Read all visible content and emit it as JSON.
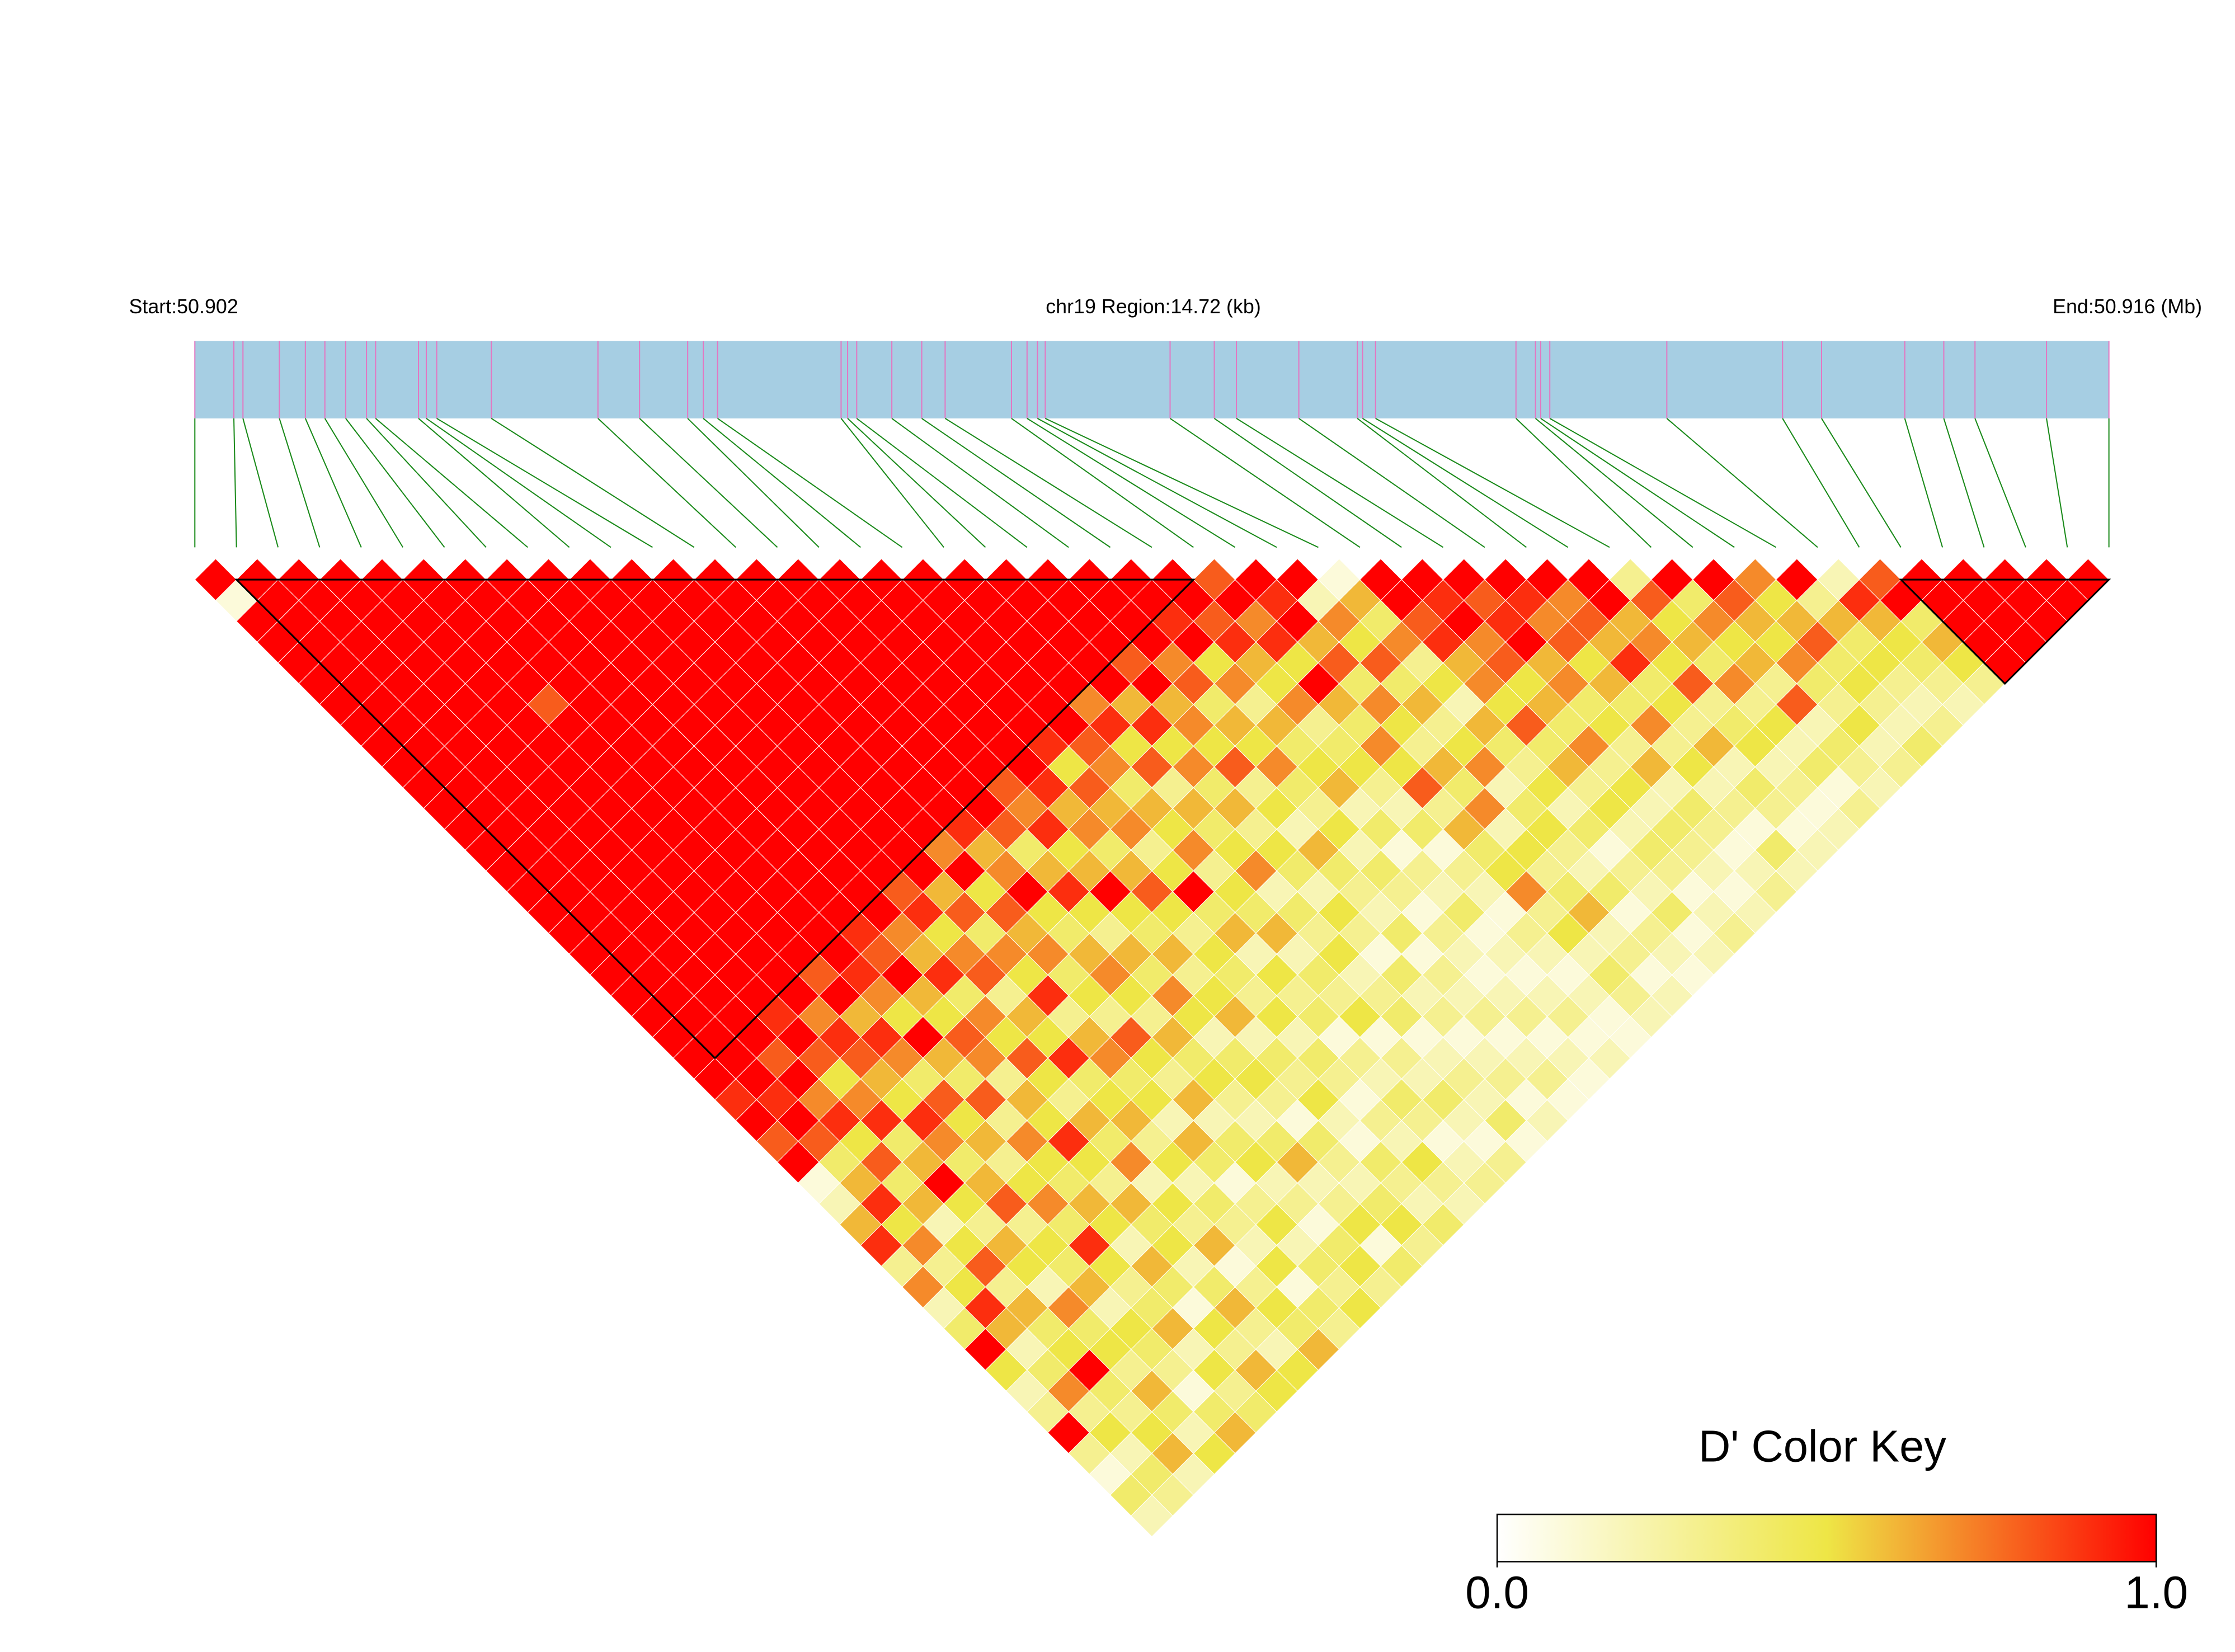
{
  "chart_data": {
    "type": "ld-heatmap",
    "start_label": "Start:50.902",
    "region_label": "chr19 Region:14.72 (kb)",
    "end_label": "End:50.916 (Mb)",
    "xlim": [
      0,
      14.72
    ],
    "positions": [
      0,
      0.3,
      0.37,
      0.65,
      0.85,
      1.0,
      1.16,
      1.32,
      1.39,
      1.72,
      1.78,
      1.86,
      2.28,
      3.1,
      3.42,
      3.79,
      3.91,
      4.02,
      4.97,
      5.02,
      5.09,
      5.36,
      5.59,
      5.77,
      6.28,
      6.4,
      6.48,
      6.54,
      7.5,
      7.84,
      8.01,
      8.49,
      8.94,
      8.98,
      9.08,
      10.16,
      10.31,
      10.35,
      10.42,
      11.32,
      12.21,
      12.51,
      13.15,
      13.45,
      13.69,
      14.24,
      14.72
    ],
    "matrix": [
      [
        1,
        0.1,
        1,
        1,
        1,
        1,
        1,
        1,
        1,
        1,
        1,
        1,
        1,
        1,
        1,
        1,
        1,
        1,
        1,
        1,
        1,
        1,
        1,
        1,
        1,
        0.9,
        1,
        0.8,
        1,
        0.1,
        0.2,
        0.6,
        0.9,
        0.3,
        0.7,
        0.2,
        0.4,
        1,
        0.5,
        0.2,
        0.3,
        1,
        0.3,
        0.1,
        0.4,
        0.2
      ],
      [
        1,
        1,
        1,
        1,
        1,
        1,
        1,
        1,
        1,
        1,
        1,
        1,
        1,
        1,
        1,
        1,
        1,
        1,
        1,
        1,
        1,
        1,
        1,
        1,
        1,
        0.9,
        1,
        0.8,
        0.4,
        0.6,
        0.9,
        0.5,
        0.7,
        0.3,
        0.5,
        0.9,
        0.6,
        0.2,
        0.4,
        0.7,
        0.3,
        0.5,
        0.2,
        0.4,
        0.3
      ],
      [
        1,
        1,
        1,
        1,
        1,
        1,
        1,
        1,
        1,
        1,
        1,
        1,
        1,
        1,
        1,
        1,
        1,
        1,
        1,
        1,
        1,
        1,
        1,
        0.8,
        1,
        0.7,
        0.9,
        0.5,
        0.8,
        0.4,
        0.6,
        0.2,
        0.5,
        0.8,
        0.3,
        0.6,
        0.4,
        0.5,
        1,
        0.4,
        0.3,
        0.5,
        0.6,
        0.2
      ],
      [
        1,
        1,
        1,
        1,
        1,
        1,
        1,
        1,
        1,
        1,
        1,
        1,
        1,
        1,
        1,
        1,
        1,
        1,
        1,
        1,
        1,
        0.9,
        1,
        0.8,
        0.5,
        0.7,
        0.9,
        0.4,
        0.6,
        1,
        0.5,
        0.3,
        0.6,
        0.5,
        0.2,
        0.7,
        0.4,
        0.5,
        0.3,
        0.6,
        0.4,
        0.2,
        0.5
      ],
      [
        1,
        1,
        1,
        1,
        1,
        1,
        1,
        1,
        1,
        1,
        1,
        1,
        1,
        1,
        1,
        1,
        1,
        1,
        1,
        1,
        1,
        0.7,
        0.9,
        0.8,
        0.6,
        0.5,
        0.9,
        0.7,
        0.4,
        0.6,
        0.8,
        0.3,
        0.5,
        0.4,
        0.6,
        0.2,
        0.5,
        0.4,
        0.3,
        0.1,
        0.4,
        0.6
      ],
      [
        1,
        1,
        1,
        1,
        1,
        1,
        0.8,
        1,
        1,
        1,
        1,
        1,
        1,
        1,
        1,
        1,
        1,
        1,
        1,
        0.8,
        1,
        0.6,
        0.9,
        0.7,
        0.4,
        0.8,
        0.5,
        0.6,
        0.3,
        0.5,
        0.7,
        0.4,
        0.9,
        0.5,
        0.3,
        0.4,
        0.6,
        0.2,
        0.5,
        0.3,
        0.4
      ],
      [
        1,
        1,
        1,
        1,
        1,
        1,
        1,
        1,
        1,
        1,
        1,
        1,
        1,
        1,
        1,
        1,
        1,
        1,
        1,
        0.9,
        0.7,
        0.5,
        1,
        0.6,
        0.4,
        0.8,
        0.3,
        0.7,
        0.5,
        0.4,
        0.6,
        0.5,
        0.2,
        0.6,
        0.4,
        0.1,
        0.5,
        0.3,
        0.6,
        0.5
      ],
      [
        1,
        1,
        1,
        1,
        1,
        1,
        1,
        1,
        1,
        1,
        1,
        1,
        1,
        1,
        1,
        1,
        1,
        0.9,
        0.8,
        1,
        0.6,
        0.5,
        0.8,
        0.7,
        0.3,
        0.6,
        0.5,
        0.9,
        0.5,
        0.3,
        0.6,
        0.4,
        0.5,
        0.2,
        0.4,
        0.6,
        0.3,
        0.2,
        0.5
      ],
      [
        1,
        1,
        1,
        1,
        1,
        1,
        1,
        1,
        1,
        1,
        1,
        1,
        1,
        1,
        1,
        1,
        1,
        0.7,
        0.6,
        0.9,
        0.4,
        0.7,
        0.5,
        0.8,
        0.5,
        0.3,
        0.6,
        0.4,
        0.7,
        0.2,
        0.5,
        0.3,
        0.6,
        0.1,
        0.3,
        0.5,
        0.4,
        0.6
      ],
      [
        1,
        1,
        1,
        1,
        1,
        1,
        1,
        1,
        1,
        1,
        1,
        1,
        1,
        1,
        1,
        0.8,
        0.9,
        0.5,
        0.7,
        0.8,
        0.3,
        0.6,
        0.5,
        0.9,
        0.4,
        0.5,
        0.6,
        0.3,
        0.5,
        0.2,
        0.4,
        0.3,
        0.2,
        0.5,
        0.1,
        0.4,
        0.3
      ],
      [
        1,
        1,
        1,
        1,
        1,
        1,
        1,
        1,
        1,
        1,
        1,
        1,
        1,
        1,
        1,
        0.6,
        0.8,
        0.4,
        0.7,
        0.5,
        0.9,
        0.3,
        0.6,
        0.7,
        0.4,
        0.5,
        0.2,
        0.6,
        0.4,
        0.1,
        0.3,
        0.5,
        0.2,
        0.4,
        0.3,
        0.5
      ],
      [
        1,
        1,
        1,
        1,
        1,
        1,
        1,
        1,
        1,
        1,
        1,
        1,
        1,
        0.7,
        1,
        0.5,
        0.8,
        0.6,
        0.7,
        0.4,
        0.5,
        0.3,
        0.8,
        0.5,
        0.3,
        0.6,
        0.2,
        0.4,
        0.5,
        0.2,
        0.3,
        0.1,
        0.4,
        0.5,
        0.3
      ],
      [
        1,
        1,
        1,
        1,
        1,
        1,
        1,
        1,
        1,
        1,
        1,
        1,
        0.9,
        0.6,
        0.7,
        1,
        0.5,
        0.4,
        0.6,
        0.7,
        0.5,
        0.3,
        0.6,
        0.4,
        0.5,
        0.3,
        0.2,
        0.4,
        0.6,
        0.2,
        0.3,
        0.5,
        0.1,
        0.4
      ],
      [
        1,
        1,
        1,
        1,
        1,
        1,
        1,
        1,
        1,
        1,
        1,
        1,
        0.8,
        0.4,
        0.6,
        0.9,
        0.5,
        0.3,
        0.6,
        0.4,
        0.7,
        0.5,
        0.2,
        0.4,
        0.5,
        0.3,
        0.1,
        0.4,
        0.3,
        0.2,
        0.4,
        0.5,
        0.3
      ],
      [
        1,
        1,
        1,
        1,
        1,
        1,
        1,
        1,
        1,
        1,
        0.8,
        0.7,
        0.9,
        0.5,
        0.6,
        1,
        0.5,
        0.4,
        0.6,
        0.3,
        0.5,
        0.6,
        0.2,
        0.4,
        0.3,
        0.5,
        0.2,
        0.1,
        0.4,
        0.3,
        0.2,
        0.4
      ],
      [
        1,
        1,
        1,
        1,
        1,
        1,
        1,
        1,
        1,
        1,
        0.9,
        0.6,
        0.7,
        0.4,
        0.6,
        0.8,
        0.5,
        0.3,
        0.5,
        0.4,
        0.3,
        0.5,
        0.2,
        0.4,
        0.3,
        0.1,
        0.3,
        0.2,
        0.5,
        0.3,
        0.2
      ],
      [
        1,
        1,
        1,
        1,
        1,
        1,
        1,
        1,
        0.9,
        0.5,
        0.8,
        0.6,
        0.7,
        0.3,
        0.5,
        1,
        0.4,
        0.6,
        0.2,
        0.5,
        0.3,
        0.4,
        0.1,
        0.3,
        0.2,
        0.4,
        0.3,
        0.1,
        0.2,
        0.3
      ],
      [
        1,
        1,
        1,
        1,
        1,
        1,
        1,
        1,
        0.8,
        0.7,
        0.4,
        0.6,
        0.5,
        0.7,
        0.3,
        0.5,
        0.4,
        0.6,
        0.2,
        0.4,
        0.3,
        0.5,
        0.1,
        0.3,
        0.2,
        0.4,
        0.2,
        0.1,
        0.3
      ],
      [
        1,
        1,
        1,
        1,
        1,
        1,
        0.7,
        0.9,
        0.5,
        0.8,
        0.3,
        0.6,
        0.4,
        0.5,
        0.7,
        0.2,
        0.4,
        0.3,
        0.5,
        0.2,
        0.3,
        0.4,
        0.1,
        0.2,
        0.3,
        0.2,
        0.4,
        0.1
      ],
      [
        1,
        1,
        1,
        1,
        1,
        1,
        0.6,
        0.9,
        0.5,
        0.7,
        0.4,
        0.6,
        0.3,
        0.5,
        0.4,
        0.2,
        0.5,
        0.3,
        0.1,
        0.4,
        0.2,
        0.3,
        0.1,
        0.2,
        0.3,
        0.1,
        0.2
      ],
      [
        1,
        1,
        1,
        1,
        0.8,
        1,
        0.6,
        0.7,
        0.5,
        0.8,
        0.3,
        0.5,
        0.2,
        0.6,
        0.4,
        0.3,
        0.2,
        0.4,
        0.1,
        0.3,
        0.2,
        0.3,
        0.1,
        0.2,
        0.3,
        0.1
      ],
      [
        1,
        1,
        1,
        1,
        0.7,
        0.8,
        0.4,
        0.6,
        0.5,
        0.7,
        0.4,
        0.3,
        0.5,
        0.2,
        0.4,
        0.3,
        0.1,
        0.3,
        0.2,
        0.1,
        0.2,
        0.3,
        0.1,
        0.2,
        0.1
      ],
      [
        1,
        1,
        0.9,
        1,
        0.5,
        0.7,
        0.3,
        0.6,
        0.4,
        0.5,
        0.6,
        0.2,
        0.4,
        0.1,
        0.3,
        0.2,
        0.4,
        0.1,
        0.2,
        0.1,
        0.2,
        0.3,
        0.1,
        0.2
      ],
      [
        1,
        1,
        0.8,
        0.9,
        0.6,
        0.5,
        0.7,
        0.3,
        0.4,
        0.5,
        0.3,
        0.2,
        0.4,
        0.1,
        0.3,
        0.2,
        0.1,
        0.3,
        0.2,
        0.1,
        0.2,
        0.1,
        0.1
      ],
      [
        0.8,
        1,
        0.7,
        0.9,
        0.5,
        1,
        0.6,
        0.4,
        0.7,
        0.5,
        0.8,
        0.3,
        0.6,
        0.4,
        0.5,
        0.7,
        0.3,
        0.5,
        0.2,
        0.4,
        0.3,
        0.2
      ],
      [
        1,
        0.9,
        1,
        0.6,
        0.8,
        0.4,
        0.7,
        0.5,
        0.3,
        0.6,
        0.4,
        0.7,
        0.2,
        0.5,
        0.3,
        0.4,
        0.6,
        0.2,
        0.3,
        0.1,
        0.2
      ],
      [
        1,
        0.2,
        0.7,
        0.5,
        0.8,
        0.4,
        0.6,
        0.3,
        0.5,
        0.7,
        0.2,
        0.4,
        0.5,
        0.3,
        0.2,
        0.4,
        0.1,
        0.3,
        0.2,
        0.1
      ],
      [
        0.1,
        0.6,
        0.4,
        0.7,
        0.3,
        0.5,
        0.2,
        0.6,
        0.4,
        0.3,
        0.5,
        0.2,
        0.4,
        0.1,
        0.3,
        0.2,
        0.4,
        0.1,
        0.2
      ],
      [
        1,
        1,
        0.8,
        0.9,
        0.6,
        0.7,
        0.5,
        0.8,
        0.4,
        0.6,
        0.3,
        0.5,
        0.2,
        0.4,
        0.3,
        0.1,
        0.2,
        0.3
      ],
      [
        1,
        0.9,
        1,
        0.7,
        0.8,
        0.5,
        0.6,
        0.4,
        0.7,
        0.3,
        0.5,
        0.2,
        0.4,
        0.3,
        0.2,
        0.1,
        0.2
      ],
      [
        1,
        0.8,
        0.9,
        1,
        0.6,
        0.7,
        0.4,
        0.5,
        0.3,
        0.6,
        0.2,
        0.4,
        0.3,
        0.1,
        0.2,
        0.3
      ],
      [
        1,
        0.9,
        0.7,
        0.8,
        0.5,
        0.6,
        0.4,
        0.7,
        0.3,
        0.5,
        0.2,
        0.3,
        0.1,
        0.4,
        0.2
      ],
      [
        1,
        0.7,
        0.8,
        0.6,
        0.9,
        0.4,
        0.5,
        0.3,
        0.6,
        0.2,
        0.4,
        0.3,
        0.1,
        0.2
      ],
      [
        1,
        1,
        0.6,
        0.7,
        0.5,
        0.8,
        0.3,
        0.4,
        0.5,
        0.2,
        0.3,
        0.1,
        0.2
      ],
      [
        0.3,
        0.8,
        0.5,
        0.6,
        0.4,
        0.7,
        0.3,
        0.5,
        0.2,
        0.4,
        0.1,
        0.3
      ],
      [
        1,
        0.4,
        0.7,
        0.5,
        0.6,
        0.3,
        0.8,
        0.2,
        0.4,
        0.3,
        0.2
      ],
      [
        1,
        0.8,
        0.6,
        0.5,
        0.7,
        0.4,
        0.3,
        0.5,
        0.2,
        0.3
      ],
      [
        0.7,
        0.5,
        0.6,
        0.8,
        0.4,
        0.5,
        0.3,
        0.2,
        0.4
      ],
      [
        1,
        0.3,
        0.6,
        0.4,
        0.5,
        0.3,
        0.2,
        0.3
      ],
      [
        0.2,
        0.9,
        0.6,
        0.5,
        0.4,
        0.3,
        0.2
      ],
      [
        0.8,
        1,
        0.4,
        0.6,
        0.5,
        0.3
      ],
      [
        1,
        1,
        1,
        1,
        1
      ],
      [
        1,
        1,
        1,
        1
      ],
      [
        1,
        1,
        1
      ],
      [
        1,
        1
      ],
      [
        1
      ]
    ],
    "blocks": [
      [
        1,
        24
      ],
      [
        41,
        46
      ]
    ],
    "key": {
      "title": "D' Color Key",
      "lim": [
        0,
        1
      ],
      "ticks": [
        {
          "value": 0,
          "label": "0.0"
        },
        {
          "value": 1,
          "label": "1.0"
        }
      ]
    }
  }
}
